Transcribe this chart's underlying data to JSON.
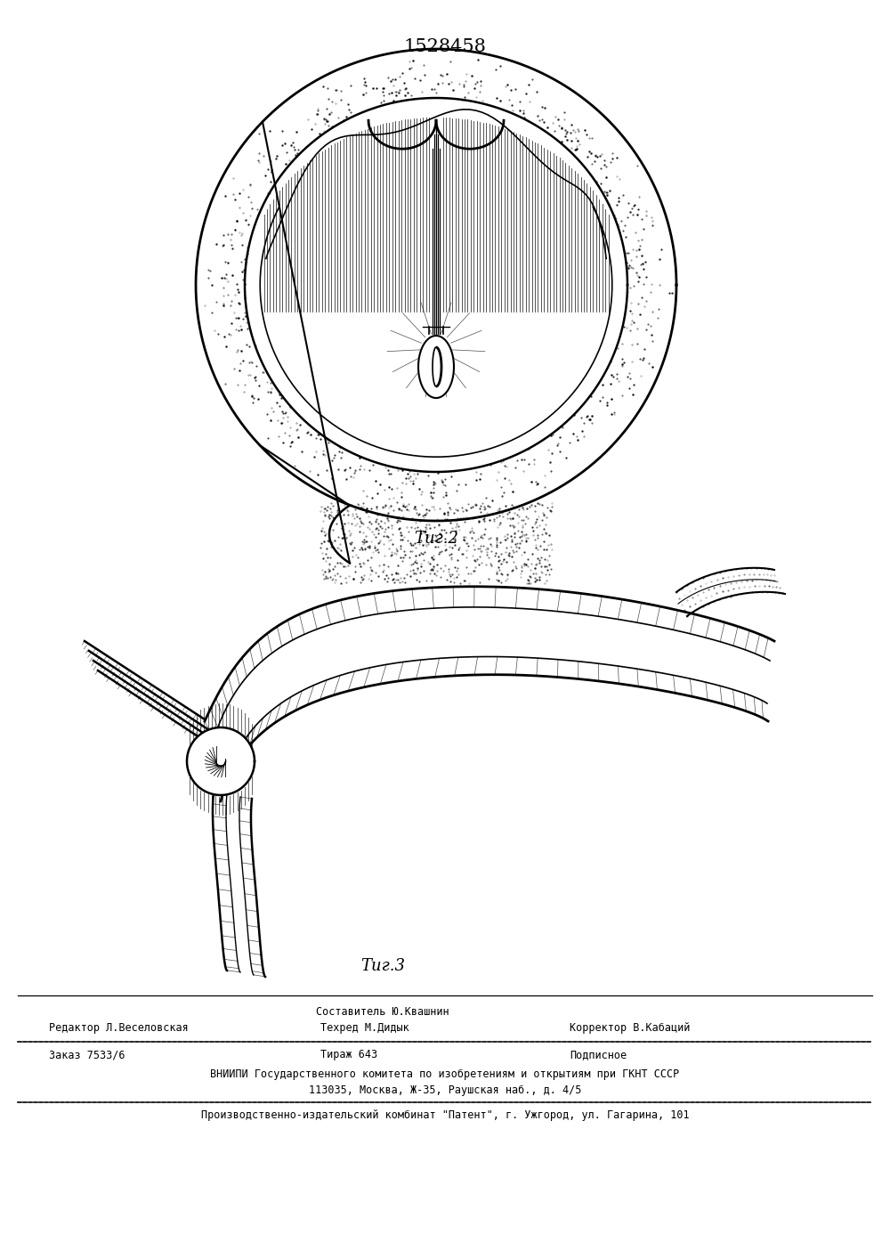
{
  "patent_number": "1528458",
  "fig2_label": "Τиг.2",
  "fig3_label": "Τиг.3",
  "footer_line1_left": "Редактор Л.Веселовская",
  "footer_line1_center": "Составитель Ю.Квашнин",
  "footer_line1_center2": "Техред М.Дидык",
  "footer_line1_right": "Корректор В.Кабаций",
  "footer_line2_left": "Заказ 7533/6",
  "footer_line2_center": "Тираж 643",
  "footer_line2_right": "Подписное",
  "footer_line3": "ВНИИПИ Государственного комитета по изобретениям и открытиям при ГКНТ СССР",
  "footer_line4": "113035, Москва, Ж-35, Раушская наб., д. 4/5",
  "footer_line5": "Производственно-издательский комбинат \"Патент\", г. Ужгород, ул. Гагарина, 101",
  "bg_color": "#ffffff",
  "text_color": "#000000",
  "line_color": "#000000"
}
